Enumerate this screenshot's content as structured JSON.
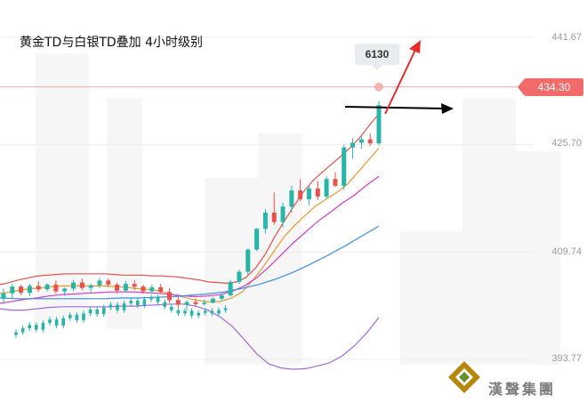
{
  "title": "黄金TD与白银TD叠加 4小时级别",
  "y_ticks": [
    "441.67",
    "425.70",
    "409.74",
    "393.77"
  ],
  "last_price": "434.30",
  "bubble_value": "6130",
  "brand": "漢聲集團",
  "colors": {
    "up": "#26b5a8",
    "down": "#e8504a",
    "upper_band": "#e8504a",
    "ma_orange": "#e89a2a",
    "ma_magenta": "#d23ac8",
    "ma_blue": "#3a8de8",
    "lower_band": "#a36ae0",
    "price_line": "#f5a3a3",
    "red_arrow": "#e82a2a"
  },
  "chart_data": {
    "type": "candlestick",
    "title": "黄金TD与白银TD叠加 4小时级别",
    "y_ticks": [
      441.67,
      425.7,
      409.74,
      393.77
    ],
    "ylim": [
      389.3,
      446.1
    ],
    "last_price": 434.3,
    "annotation": "6130",
    "gold_candles_ohlc": [
      [
        402.8,
        404.3,
        402.0,
        403.6
      ],
      [
        403.6,
        405.0,
        402.9,
        404.6
      ],
      [
        404.6,
        404.9,
        403.3,
        403.7
      ],
      [
        403.7,
        405.0,
        403.2,
        404.7
      ],
      [
        404.7,
        405.4,
        403.8,
        404.2
      ],
      [
        404.2,
        405.1,
        403.9,
        404.9
      ],
      [
        404.9,
        405.5,
        403.6,
        403.9
      ],
      [
        403.9,
        404.5,
        403.2,
        404.3
      ],
      [
        404.3,
        405.6,
        403.9,
        405.2
      ],
      [
        405.2,
        405.8,
        404.1,
        404.4
      ],
      [
        404.4,
        405.1,
        403.6,
        404.8
      ],
      [
        404.8,
        405.9,
        404.4,
        405.5
      ],
      [
        405.5,
        405.8,
        404.5,
        404.9
      ],
      [
        404.9,
        405.2,
        403.6,
        404.0
      ],
      [
        404.0,
        405.4,
        403.7,
        405.0
      ],
      [
        405.0,
        405.6,
        404.1,
        404.6
      ],
      [
        404.6,
        404.9,
        403.5,
        403.9
      ],
      [
        403.9,
        404.9,
        403.6,
        404.5
      ],
      [
        404.5,
        405.0,
        403.5,
        403.8
      ],
      [
        403.8,
        404.4,
        402.2,
        402.6
      ],
      [
        402.6,
        403.4,
        401.5,
        401.9
      ],
      [
        401.9,
        402.6,
        401.1,
        402.3
      ],
      [
        402.3,
        402.8,
        401.6,
        402.0
      ],
      [
        402.0,
        402.7,
        401.8,
        402.2
      ],
      [
        402.2,
        403.0,
        402.1,
        402.8
      ],
      [
        402.8,
        403.6,
        402.5,
        403.3
      ],
      [
        403.3,
        405.6,
        403.1,
        405.3
      ],
      [
        405.3,
        407.1,
        405.0,
        406.8
      ],
      [
        406.8,
        410.3,
        406.3,
        410.1
      ],
      [
        410.1,
        413.3,
        409.9,
        413.2
      ],
      [
        413.2,
        416.1,
        412.5,
        415.6
      ],
      [
        415.6,
        418.6,
        413.8,
        414.2
      ],
      [
        414.2,
        417.1,
        413.4,
        416.5
      ],
      [
        416.5,
        419.6,
        415.6,
        418.9
      ],
      [
        418.9,
        420.6,
        417.3,
        417.6
      ],
      [
        417.6,
        419.6,
        416.7,
        419.2
      ],
      [
        419.2,
        420.3,
        417.5,
        418.0
      ],
      [
        418.0,
        421.0,
        417.6,
        420.6
      ],
      [
        420.6,
        421.6,
        419.4,
        419.6
      ],
      [
        419.6,
        425.7,
        419.0,
        425.3
      ],
      [
        425.3,
        426.7,
        423.6,
        426.0
      ],
      [
        426.0,
        427.0,
        425.1,
        426.5
      ],
      [
        426.5,
        427.4,
        425.5,
        425.9
      ],
      [
        425.9,
        432.2,
        425.6,
        431.6
      ]
    ],
    "silver_candles_close": [
      397.8,
      398.4,
      398.9,
      398.2,
      399.2,
      399.7,
      398.8,
      399.9,
      400.4,
      399.6,
      400.6,
      401.2,
      400.5,
      401.5,
      401.9,
      401.1,
      402.1,
      402.5,
      401.8,
      402.7,
      403.0,
      402.3,
      401.6,
      401.1,
      400.6,
      401.0,
      400.3,
      400.7,
      401.0,
      400.6,
      401.1,
      401.4
    ],
    "series": [
      {
        "name": "",
        "type": "upper-band",
        "values": [
          404.9,
          405.2,
          405.6,
          405.9,
          406.2,
          406.3,
          406.4,
          406.5,
          406.5,
          406.5,
          406.5,
          406.5,
          406.4,
          406.3,
          406.3,
          406.3,
          406.2,
          406.2,
          406.1,
          406.0,
          405.8,
          405.6,
          405.3,
          405.2,
          405.1,
          405.3,
          406.0,
          407.4,
          409.4,
          412.0,
          414.3,
          416.5,
          418.6,
          420.3,
          421.6,
          422.8,
          424.0,
          425.3,
          426.8,
          428.6,
          430.3
        ]
      },
      {
        "name": "",
        "type": "ma-orange",
        "values": [
          403.6,
          403.8,
          404.1,
          404.3,
          404.4,
          404.6,
          404.7,
          404.7,
          404.7,
          404.7,
          404.7,
          404.6,
          404.5,
          404.3,
          404.2,
          404.0,
          403.6,
          403.2,
          402.8,
          402.5,
          402.3,
          402.4,
          402.9,
          403.8,
          405.5,
          407.5,
          409.8,
          412.0,
          413.7,
          415.2,
          416.6,
          417.6,
          418.6,
          419.8,
          421.6,
          423.4,
          425.2
        ]
      },
      {
        "name": "",
        "type": "ma-magenta",
        "values": [
          402.1,
          402.4,
          402.7,
          402.9,
          403.2,
          403.4,
          403.5,
          403.6,
          403.7,
          403.8,
          403.8,
          403.8,
          403.7,
          403.6,
          403.4,
          403.2,
          403.1,
          403.2,
          403.4,
          403.9,
          404.7,
          405.9,
          407.5,
          409.3,
          411.1,
          412.7,
          414.3,
          415.6,
          417.0,
          418.2,
          419.7,
          421.0
        ]
      },
      {
        "name": "",
        "type": "ma-blue",
        "values": [
          402.9,
          402.8,
          402.8,
          402.8,
          402.8,
          402.8,
          402.8,
          402.9,
          402.9,
          403.0,
          403.1,
          403.3,
          403.5,
          403.8,
          404.3,
          404.9,
          405.7,
          406.7,
          407.9,
          409.2,
          410.6,
          412.1,
          413.6
        ]
      },
      {
        "name": "",
        "type": "lower-band",
        "values": [
          401.3,
          401.1,
          401.1,
          401.3,
          401.5,
          401.6,
          401.6,
          401.6,
          401.6,
          401.6,
          401.7,
          401.7,
          401.8,
          401.9,
          402.0,
          402.0,
          401.7,
          401.1,
          400.1,
          398.7,
          396.7,
          394.6,
          393.1,
          392.5,
          392.3,
          392.4,
          392.8,
          393.3,
          394.3,
          395.8,
          397.7,
          400.0
        ]
      }
    ]
  }
}
